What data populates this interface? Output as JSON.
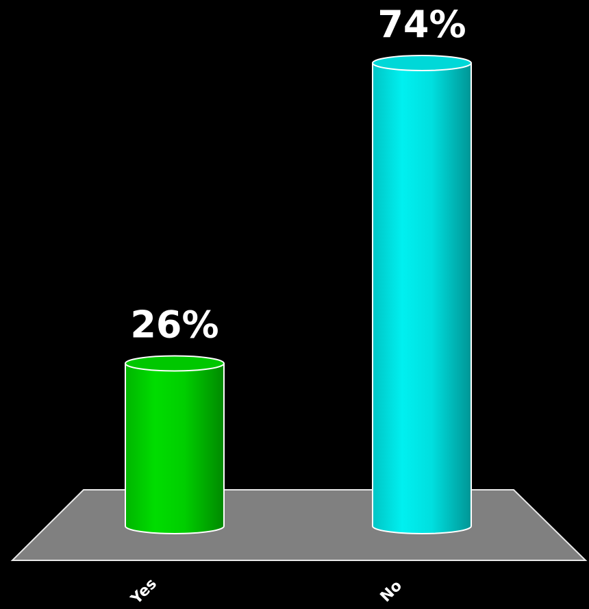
{
  "chart_data": {
    "type": "bar",
    "categories": [
      "Yes",
      "No"
    ],
    "values": [
      26,
      74
    ],
    "value_labels": [
      "26%",
      "74%"
    ],
    "colors": [
      "#00dd00",
      "#00f0f0"
    ],
    "floor_color": "#808080",
    "background": "#000000",
    "unit": "%",
    "ylim": [
      0,
      80
    ],
    "grid": false,
    "legend": "none"
  }
}
